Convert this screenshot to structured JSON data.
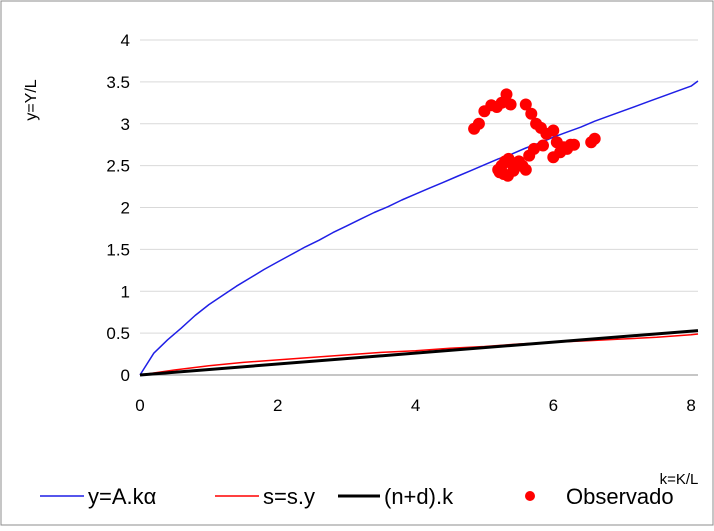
{
  "chart_data": {
    "type": "line",
    "ylabel": "y=Y/L",
    "xlabel": "k=K/L",
    "xlim": [
      0,
      8.1
    ],
    "ylim": [
      0,
      4
    ],
    "x_ticks": [
      "0",
      "2",
      "4",
      "6",
      "8"
    ],
    "y_ticks": [
      "0",
      "0.5",
      "1",
      "1.5",
      "2",
      "2.5",
      "3",
      "3.5",
      "4"
    ],
    "grid": "horizontal",
    "legend_position": "bottom",
    "series": [
      {
        "name": "y=A.kα",
        "type": "line",
        "color": "#1f1fe6",
        "x": [
          0,
          0.2,
          0.4,
          0.6,
          0.8,
          1.0,
          1.2,
          1.4,
          1.6,
          1.8,
          2.0,
          2.2,
          2.4,
          2.6,
          2.8,
          3.0,
          3.2,
          3.4,
          3.6,
          3.8,
          4.0,
          4.2,
          4.4,
          4.6,
          4.8,
          5.0,
          5.2,
          5.4,
          5.6,
          5.8,
          6.0,
          6.2,
          6.4,
          6.6,
          6.8,
          7.0,
          7.2,
          7.4,
          7.6,
          7.8,
          8.0,
          8.1
        ],
        "y": [
          0,
          0.26,
          0.42,
          0.56,
          0.71,
          0.84,
          0.95,
          1.06,
          1.16,
          1.26,
          1.35,
          1.44,
          1.53,
          1.61,
          1.7,
          1.78,
          1.86,
          1.94,
          2.01,
          2.09,
          2.16,
          2.23,
          2.3,
          2.37,
          2.44,
          2.51,
          2.58,
          2.64,
          2.71,
          2.77,
          2.84,
          2.9,
          2.96,
          3.03,
          3.09,
          3.15,
          3.21,
          3.27,
          3.33,
          3.39,
          3.45,
          3.51
        ]
      },
      {
        "name": "s=s.y",
        "type": "line",
        "color": "#ff0000",
        "x": [
          0,
          0.5,
          1.0,
          1.5,
          2.0,
          2.5,
          3.0,
          3.5,
          4.0,
          4.5,
          5.0,
          5.5,
          6.0,
          6.5,
          7.0,
          7.5,
          8.0,
          8.1
        ],
        "y": [
          0,
          0.06,
          0.11,
          0.15,
          0.18,
          0.21,
          0.24,
          0.27,
          0.29,
          0.32,
          0.34,
          0.37,
          0.39,
          0.41,
          0.43,
          0.45,
          0.48,
          0.49
        ]
      },
      {
        "name": "(n+d).k",
        "type": "line",
        "color": "#000000",
        "x": [
          0,
          8.1
        ],
        "y": [
          0,
          0.53
        ]
      },
      {
        "name": "Observado",
        "type": "scatter",
        "color": "#ff0000",
        "x": [
          4.85,
          4.92,
          5.0,
          5.1,
          5.18,
          5.25,
          5.32,
          5.38,
          5.6,
          5.68,
          5.75,
          5.82,
          5.9,
          6.0,
          6.05,
          6.15,
          6.25,
          6.55,
          6.6,
          5.2,
          5.25,
          5.3,
          5.35,
          5.4,
          5.45,
          5.5,
          5.55,
          5.6,
          5.65,
          5.72,
          5.85,
          6.0,
          6.1,
          6.2,
          6.3,
          5.22,
          5.28,
          5.34,
          5.42
        ],
        "y": [
          2.94,
          3.0,
          3.15,
          3.22,
          3.2,
          3.25,
          3.35,
          3.23,
          3.23,
          3.12,
          3.0,
          2.95,
          2.88,
          2.92,
          2.78,
          2.72,
          2.75,
          2.78,
          2.82,
          2.45,
          2.5,
          2.55,
          2.58,
          2.52,
          2.48,
          2.55,
          2.5,
          2.45,
          2.62,
          2.7,
          2.74,
          2.6,
          2.66,
          2.7,
          2.75,
          2.42,
          2.4,
          2.38,
          2.44
        ]
      }
    ]
  }
}
